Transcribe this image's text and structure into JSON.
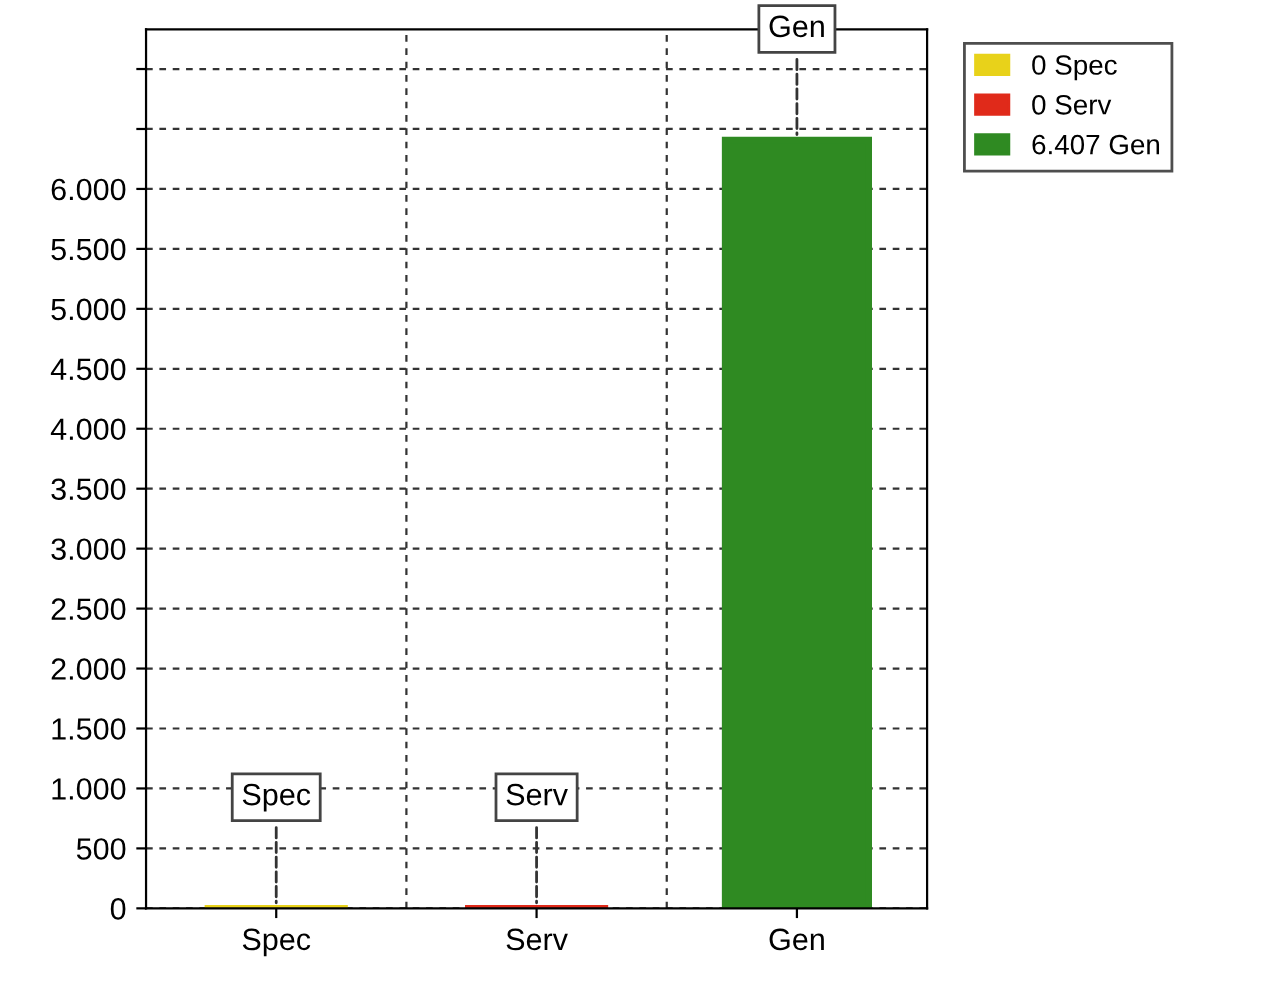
{
  "chart_data": {
    "type": "bar",
    "categories": [
      "Spec",
      "Serv",
      "Gen"
    ],
    "series": [
      {
        "name": "0 Spec",
        "color": "#e8d21a",
        "values": [
          0,
          null,
          null
        ]
      },
      {
        "name": "0 Serv",
        "color": "#e02a1a",
        "values": [
          null,
          0,
          null
        ]
      },
      {
        "name": "6.407 Gen",
        "color": "#2f8a22",
        "values": [
          null,
          null,
          6407
        ]
      }
    ],
    "ylim": [
      0,
      7330
    ],
    "yticks": [
      {
        "value": 0,
        "label": "0"
      },
      {
        "value": 500,
        "label": "500"
      },
      {
        "value": 1000,
        "label": "1.000"
      },
      {
        "value": 1500,
        "label": "1.500"
      },
      {
        "value": 2000,
        "label": "2.000"
      },
      {
        "value": 2500,
        "label": "2.500"
      },
      {
        "value": 3000,
        "label": "3.000"
      },
      {
        "value": 3500,
        "label": "3.500"
      },
      {
        "value": 4000,
        "label": "4.000"
      },
      {
        "value": 4500,
        "label": "4.500"
      },
      {
        "value": 5000,
        "label": "5.000"
      },
      {
        "value": 5500,
        "label": "5.500"
      },
      {
        "value": 6000,
        "label": "6.000"
      },
      {
        "value": 6500,
        "label": null
      },
      {
        "value": 7000,
        "label": null
      }
    ],
    "annotations": [
      {
        "text": "Spec",
        "x": "Spec",
        "y": 0
      },
      {
        "text": "Serv",
        "x": "Serv",
        "y": 0
      },
      {
        "text": "Gen",
        "x": "Gen",
        "y": 6407
      }
    ],
    "grid": true,
    "legend": "top right"
  }
}
